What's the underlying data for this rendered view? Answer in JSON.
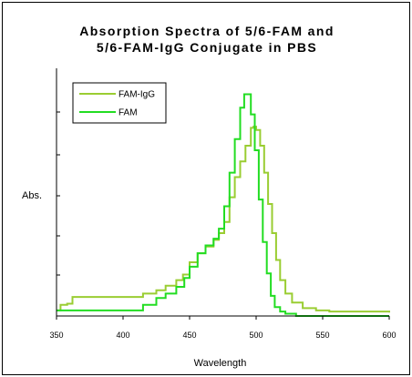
{
  "chart_data": {
    "type": "line",
    "title_lines": [
      "Absorption Spectra of 5/6-FAM and",
      "5/6-FAM-IgG Conjugate in PBS"
    ],
    "xlabel": "Wavelength",
    "ylabel": "Abs.",
    "xlim": [
      350,
      600
    ],
    "ylim": [
      0,
      1.0
    ],
    "x_ticks": [
      350,
      400,
      450,
      500,
      550,
      600
    ],
    "y_ticks": [
      0,
      0.2,
      0.4,
      0.6,
      0.8,
      1.0
    ],
    "y_tick_labels_shown": false,
    "grid": false,
    "legend_position": "top-left",
    "line_shape": "step",
    "series": [
      {
        "name": "FAM-IgG",
        "color": "#9acd32",
        "points": [
          [
            350,
            0.025
          ],
          [
            353,
            0.05
          ],
          [
            358,
            0.055
          ],
          [
            362,
            0.085
          ],
          [
            380,
            0.085
          ],
          [
            405,
            0.085
          ],
          [
            415,
            0.1
          ],
          [
            425,
            0.115
          ],
          [
            432,
            0.135
          ],
          [
            440,
            0.16
          ],
          [
            445,
            0.185
          ],
          [
            450,
            0.24
          ],
          [
            456,
            0.28
          ],
          [
            462,
            0.31
          ],
          [
            468,
            0.34
          ],
          [
            472,
            0.37
          ],
          [
            476,
            0.42
          ],
          [
            480,
            0.53
          ],
          [
            484,
            0.62
          ],
          [
            488,
            0.69
          ],
          [
            492,
            0.76
          ],
          [
            496,
            0.84
          ],
          [
            498,
            0.845
          ],
          [
            500,
            0.83
          ],
          [
            503,
            0.76
          ],
          [
            506,
            0.64
          ],
          [
            509,
            0.5
          ],
          [
            512,
            0.37
          ],
          [
            515,
            0.25
          ],
          [
            518,
            0.16
          ],
          [
            522,
            0.1
          ],
          [
            527,
            0.06
          ],
          [
            535,
            0.035
          ],
          [
            545,
            0.025
          ],
          [
            555,
            0.02
          ],
          [
            600,
            0.015
          ]
        ]
      },
      {
        "name": "FAM",
        "color": "#22dd22",
        "points": [
          [
            350,
            0.025
          ],
          [
            360,
            0.025
          ],
          [
            380,
            0.025
          ],
          [
            405,
            0.025
          ],
          [
            415,
            0.05
          ],
          [
            425,
            0.08
          ],
          [
            432,
            0.1
          ],
          [
            440,
            0.13
          ],
          [
            446,
            0.17
          ],
          [
            450,
            0.22
          ],
          [
            456,
            0.28
          ],
          [
            462,
            0.315
          ],
          [
            468,
            0.345
          ],
          [
            472,
            0.39
          ],
          [
            476,
            0.49
          ],
          [
            480,
            0.64
          ],
          [
            484,
            0.79
          ],
          [
            488,
            0.93
          ],
          [
            491,
            0.99
          ],
          [
            493,
            0.99
          ],
          [
            496,
            0.9
          ],
          [
            499,
            0.74
          ],
          [
            502,
            0.52
          ],
          [
            505,
            0.33
          ],
          [
            508,
            0.19
          ],
          [
            511,
            0.09
          ],
          [
            514,
            0.04
          ],
          [
            518,
            0.02
          ],
          [
            522,
            0.01
          ],
          [
            530,
            0.0
          ],
          [
            600,
            0.0
          ]
        ]
      }
    ]
  }
}
